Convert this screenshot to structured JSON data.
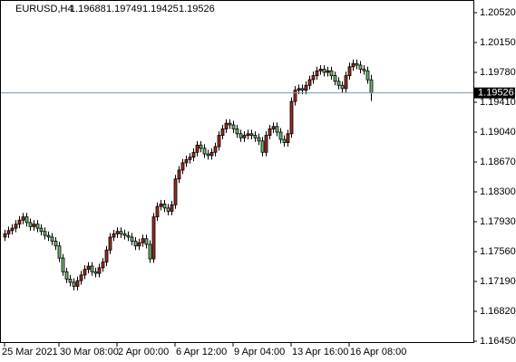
{
  "chart_data": {
    "type": "candlestick",
    "symbol": "EURUSD,H4",
    "categories": [
      "25 Mar 2021",
      null,
      null,
      null,
      null,
      null,
      null,
      null,
      null,
      null,
      null,
      null,
      null,
      null,
      null,
      "30 Mar 08:00",
      null,
      null,
      null,
      null,
      null,
      null,
      null,
      null,
      null,
      null,
      null,
      null,
      null,
      null,
      null,
      "2 Apr 00:00",
      null,
      null,
      null,
      null,
      null,
      null,
      null,
      null,
      null,
      null,
      null,
      null,
      null,
      null,
      null,
      "6 Apr 12:00",
      null,
      null,
      null,
      null,
      null,
      null,
      null,
      null,
      null,
      null,
      null,
      null,
      null,
      null,
      null,
      "9 Apr 04:00",
      null,
      null,
      null,
      null,
      null,
      null,
      null,
      null,
      null,
      null,
      null,
      null,
      null,
      null,
      null,
      "13 Apr 16:00",
      null,
      null,
      null,
      null,
      null,
      null,
      null,
      null,
      null,
      null,
      null,
      null,
      null,
      null,
      null,
      "16 Apr 08:00",
      null,
      null,
      null,
      null,
      null,
      null
    ],
    "open": [
      1.1774,
      1.1778,
      1.1782,
      1.1785,
      1.179,
      1.1795,
      1.1799,
      1.1792,
      1.1787,
      1.179,
      1.1785,
      1.1781,
      1.1776,
      1.1774,
      1.1769,
      1.1763,
      1.1748,
      1.1731,
      1.1722,
      1.1718,
      1.1713,
      1.172,
      1.1727,
      1.1734,
      1.1738,
      1.1731,
      1.1729,
      1.1736,
      1.1743,
      1.1758,
      1.1774,
      1.1778,
      1.1781,
      1.1778,
      1.1776,
      1.1774,
      1.1769,
      1.1763,
      1.1767,
      1.1772,
      1.1765,
      1.1747,
      1.1799,
      1.1812,
      1.1815,
      1.181,
      1.1806,
      1.1814,
      1.1846,
      1.1857,
      1.1866,
      1.187,
      1.1873,
      1.1879,
      1.1888,
      1.1884,
      1.1877,
      1.1875,
      1.1879,
      1.1886,
      1.19,
      1.1908,
      1.1915,
      1.1913,
      1.1908,
      1.1902,
      1.1897,
      1.19,
      1.1902,
      1.19,
      1.1897,
      1.1893,
      1.1879,
      1.19,
      1.1908,
      1.1911,
      1.1904,
      1.1895,
      1.1891,
      1.1902,
      1.1942,
      1.1956,
      1.1958,
      1.1956,
      1.1962,
      1.1969,
      1.1974,
      1.198,
      1.1982,
      1.1978,
      1.198,
      1.1974,
      1.1967,
      1.1962,
      1.1958,
      1.1974,
      1.1985,
      1.1989,
      1.1987,
      1.1982,
      1.198,
      1.19688
    ],
    "high": [
      1.1783,
      1.1787,
      1.179,
      1.1795,
      1.18,
      1.1804,
      1.1804,
      1.1797,
      1.1795,
      1.1795,
      1.179,
      1.1786,
      1.1781,
      1.1779,
      1.1774,
      1.1768,
      1.1753,
      1.1736,
      1.1727,
      1.1723,
      1.1725,
      1.1732,
      1.1739,
      1.1743,
      1.1743,
      1.1736,
      1.1741,
      1.1748,
      1.1763,
      1.1779,
      1.1783,
      1.1786,
      1.1786,
      1.1783,
      1.1781,
      1.1779,
      1.1774,
      1.1772,
      1.1777,
      1.1777,
      1.177,
      1.1804,
      1.1817,
      1.182,
      1.182,
      1.1815,
      1.1819,
      1.1851,
      1.1862,
      1.1871,
      1.1875,
      1.1878,
      1.1884,
      1.1893,
      1.1893,
      1.1889,
      1.1882,
      1.1884,
      1.1891,
      1.1905,
      1.1913,
      1.192,
      1.192,
      1.1918,
      1.1913,
      1.1907,
      1.1905,
      1.1907,
      1.1907,
      1.1905,
      1.1902,
      1.1898,
      1.1905,
      1.1913,
      1.1916,
      1.1916,
      1.1909,
      1.19,
      1.1907,
      1.1947,
      1.1961,
      1.1963,
      1.1963,
      1.1967,
      1.1974,
      1.1979,
      1.1985,
      1.1987,
      1.1987,
      1.1985,
      1.1985,
      1.1979,
      1.1972,
      1.1967,
      1.1979,
      1.199,
      1.1994,
      1.1994,
      1.1992,
      1.1987,
      1.1985,
      1.19749
    ],
    "low": [
      1.1769,
      1.1773,
      1.1777,
      1.178,
      1.1785,
      1.179,
      1.1787,
      1.1782,
      1.1782,
      1.178,
      1.1776,
      1.1771,
      1.1769,
      1.1764,
      1.1758,
      1.1743,
      1.1726,
      1.1717,
      1.1713,
      1.1708,
      1.1708,
      1.1715,
      1.1722,
      1.1729,
      1.1726,
      1.1724,
      1.1724,
      1.1731,
      1.1738,
      1.1753,
      1.1769,
      1.1773,
      1.1773,
      1.1771,
      1.1769,
      1.1764,
      1.1758,
      1.1758,
      1.1762,
      1.176,
      1.1742,
      1.1742,
      1.1794,
      1.1807,
      1.1805,
      1.1801,
      1.1801,
      1.1809,
      1.1841,
      1.1852,
      1.1861,
      1.1865,
      1.1868,
      1.1874,
      1.1879,
      1.1872,
      1.187,
      1.187,
      1.1874,
      1.1881,
      1.1895,
      1.1903,
      1.1908,
      1.1903,
      1.1897,
      1.1892,
      1.1892,
      1.1895,
      1.1895,
      1.1892,
      1.1888,
      1.1874,
      1.1874,
      1.1895,
      1.1903,
      1.1899,
      1.189,
      1.1886,
      1.1886,
      1.1897,
      1.1937,
      1.1951,
      1.1951,
      1.1951,
      1.1957,
      1.1964,
      1.1969,
      1.1975,
      1.1973,
      1.1973,
      1.1969,
      1.1962,
      1.1957,
      1.1953,
      1.1953,
      1.1969,
      1.198,
      1.1982,
      1.1977,
      1.1975,
      1.1964,
      1.19425
    ],
    "close": [
      1.1778,
      1.1782,
      1.1785,
      1.179,
      1.1795,
      1.1799,
      1.1792,
      1.1787,
      1.179,
      1.1785,
      1.1781,
      1.1776,
      1.1774,
      1.1769,
      1.1763,
      1.1748,
      1.1731,
      1.1722,
      1.1718,
      1.1713,
      1.172,
      1.1727,
      1.1734,
      1.1738,
      1.1731,
      1.1729,
      1.1736,
      1.1743,
      1.1758,
      1.1774,
      1.1778,
      1.1781,
      1.1778,
      1.1776,
      1.1774,
      1.1769,
      1.1763,
      1.1767,
      1.1772,
      1.1765,
      1.1747,
      1.1799,
      1.1812,
      1.1815,
      1.181,
      1.1806,
      1.1814,
      1.1846,
      1.1857,
      1.1866,
      1.187,
      1.1873,
      1.1879,
      1.1888,
      1.1884,
      1.1877,
      1.1875,
      1.1879,
      1.1886,
      1.19,
      1.1908,
      1.1915,
      1.1913,
      1.1908,
      1.1902,
      1.1897,
      1.19,
      1.1902,
      1.19,
      1.1897,
      1.1893,
      1.1879,
      1.19,
      1.1908,
      1.1911,
      1.1904,
      1.1895,
      1.1891,
      1.1902,
      1.1942,
      1.1956,
      1.1958,
      1.1956,
      1.1962,
      1.1969,
      1.1974,
      1.198,
      1.1982,
      1.1978,
      1.198,
      1.1974,
      1.1967,
      1.1962,
      1.1958,
      1.1974,
      1.1985,
      1.1989,
      1.1987,
      1.1982,
      1.198,
      1.19688,
      1.19526
    ],
    "up_color": "#9b2a1e",
    "down_color": "#6fb56f",
    "price_line_color": "#7f97a8",
    "ylim": [
      1.16439,
      1.20677
    ],
    "yticks": [
      {
        "value": 1.2052,
        "label": "1.20520"
      },
      {
        "value": 1.2015,
        "label": "1.20150"
      },
      {
        "value": 1.1978,
        "label": "1.19780"
      },
      {
        "value": 1.1941,
        "label": "1.19410"
      },
      {
        "value": 1.1904,
        "label": "1.19040"
      },
      {
        "value": 1.1867,
        "label": "1.18670"
      },
      {
        "value": 1.183,
        "label": "1.18300"
      },
      {
        "value": 1.1793,
        "label": "1.17930"
      },
      {
        "value": 1.1756,
        "label": "1.17560"
      },
      {
        "value": 1.1719,
        "label": "1.17190"
      },
      {
        "value": 1.1682,
        "label": "1.16820"
      },
      {
        "value": 1.1645,
        "label": "1.16450"
      }
    ]
  }
}
